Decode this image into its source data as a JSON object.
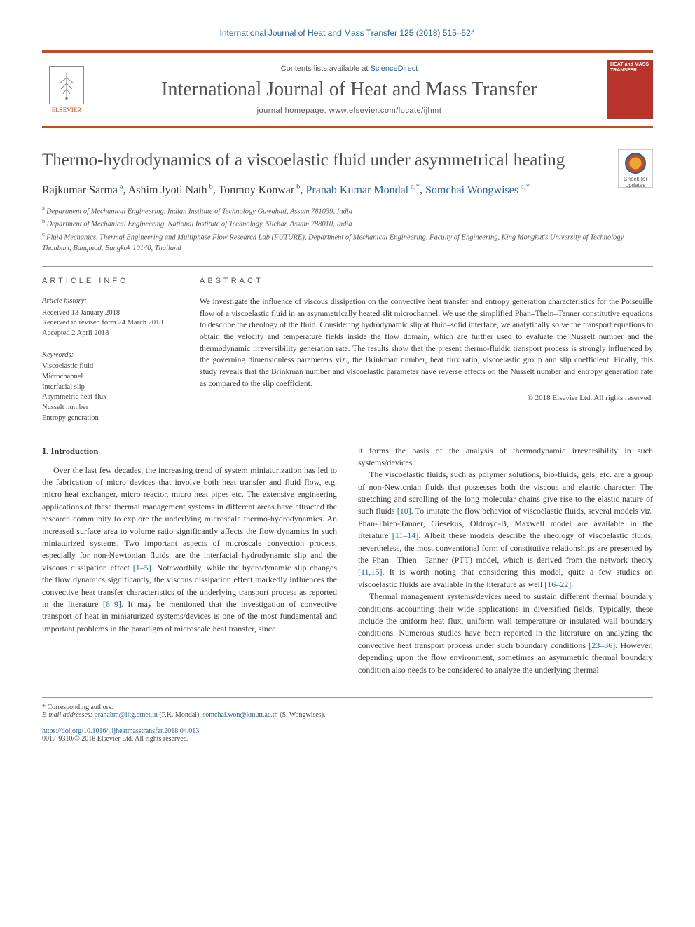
{
  "journal_ref": "International Journal of Heat and Mass Transfer 125 (2018) 515–524",
  "header": {
    "contents_prefix": "Contents lists available at ",
    "contents_link": "ScienceDirect",
    "journal_title": "International Journal of Heat and Mass Transfer",
    "homepage_prefix": "journal homepage: ",
    "homepage_url": "www.elsevier.com/locate/ijhmt",
    "publisher_label": "ELSEVIER",
    "cover_title": "HEAT and MASS TRANSFER"
  },
  "check_updates": "Check for updates",
  "title": "Thermo-hydrodynamics of a viscoelastic fluid under asymmetrical heating",
  "authors_html": "Rajkumar Sarma|a|, Ashim Jyoti Nath|b|, Tonmoy Konwar|b|, Pranab Kumar Mondal|a,*|, Somchai Wongwises|c,*",
  "authors": [
    {
      "name": "Rajkumar Sarma",
      "sup": "a"
    },
    {
      "name": "Ashim Jyoti Nath",
      "sup": "b"
    },
    {
      "name": "Tonmoy Konwar",
      "sup": "b"
    },
    {
      "name": "Pranab Kumar Mondal",
      "sup": "a,*",
      "link": true
    },
    {
      "name": "Somchai Wongwises",
      "sup": "c,*",
      "link": true
    }
  ],
  "affiliations": [
    {
      "sup": "a",
      "text": "Department of Mechanical Engineering, Indian Institute of Technology Guwahati, Assam 781039, India"
    },
    {
      "sup": "b",
      "text": "Department of Mechanical Engineering, National Institute of Technology, Silchar, Assam 788010, India"
    },
    {
      "sup": "c",
      "text": "Fluid Mechanics, Thermal Engineering and Multiphase Flow Research Lab (FUTURE), Department of Mechanical Engineering, Faculty of Engineering, King Mongkut's University of Technology Thonburi, Bangmod, Bangkok 10140, Thailand"
    }
  ],
  "info": {
    "label": "ARTICLE INFO",
    "history_head": "Article history:",
    "history": [
      "Received 13 January 2018",
      "Received in revised form 24 March 2018",
      "Accepted 2 April 2018"
    ],
    "keywords_head": "Keywords:",
    "keywords": [
      "Viscoelastic fluid",
      "Microchannel",
      "Interfacial slip",
      "Asymmetric heat-flux",
      "Nusselt number",
      "Entropy generation"
    ]
  },
  "abstract": {
    "label": "ABSTRACT",
    "text": "We investigate the influence of viscous dissipation on the convective heat transfer and entropy generation characteristics for the Poiseuille flow of a viscoelastic fluid in an asymmetrically heated slit microchannel. We use the simplified Phan–Thein–Tanner constitutive equations to describe the rheology of the fluid. Considering hydrodynamic slip at fluid–solid interface, we analytically solve the transport equations to obtain the velocity and temperature fields inside the flow domain, which are further used to evaluate the Nusselt number and the thermodynamic irreversibility generation rate. The results show that the present thermo-fluidic transport process is strongly influenced by the governing dimensionless parameters viz., the Brinkman number, heat flux ratio, viscoelastic group and slip coefficient. Finally, this study reveals that the Brinkman number and viscoelastic parameter have reverse effects on the Nusselt number and entropy generation rate as compared to the slip coefficient.",
    "copyright": "© 2018 Elsevier Ltd. All rights reserved."
  },
  "body": {
    "section_head": "1. Introduction",
    "col1_p1": "Over the last few decades, the increasing trend of system miniaturization has led to the fabrication of micro devices that involve both heat transfer and fluid flow, e.g. micro heat exchanger, micro reactor, micro heat pipes etc. The extensive engineering applications of these thermal management systems in different areas have attracted the research community to explore the underlying microscale thermo-hydrodynamics. An increased surface area to volume ratio significantly affects the flow dynamics in such miniaturized systems. Two important aspects of microscale convection process, especially for non-Newtonian fluids, are the interfacial hydrodynamic slip and the viscous dissipation effect ",
    "ref_1_5": "[1–5]",
    "col1_p1b": ". Noteworthily, while the hydrodynamic slip changes the flow dynamics significantly, the viscous dissipation effect markedly influences the convective heat transfer characteristics of the underlying transport process as reported in the literature ",
    "ref_6_9": "[6–9]",
    "col1_p1c": ". It may be mentioned that the investigation of convective transport of heat in miniaturized systems/devices is one of the most fundamental and important problems in the paradigm of microscale heat transfer, since",
    "col2_p1": "it forms the basis of the analysis of thermodynamic irreversibility in such systems/devices.",
    "col2_p2a": "The viscoelastic fluids, such as polymer solutions, bio-fluids, gels, etc. are a group of non-Newtonian fluids that possesses both the viscous and elastic character. The stretching and scrolling of the long molecular chains give rise to the elastic nature of such fluids ",
    "ref_10": "[10]",
    "col2_p2b": ". To imitate the flow behavior of viscoelastic fluids, several models viz. Phan-Thien-Tanner, Giesekus, Oldroyd-B, Maxwell model are available in the literature ",
    "ref_11_14": "[11–14]",
    "col2_p2c": ". Albeit these models describe the rheology of viscoelastic fluids, nevertheless, the most conventional form of constitutive relationships are presented by the Phan –Thien –Tanner (PTT) model, which is derived from the network theory ",
    "ref_11_15": "[11,15]",
    "col2_p2d": ". It is worth noting that considering this model, quite a few studies on viscoelastic fluids are available in the literature as well ",
    "ref_16_22": "[16–22]",
    "col2_p2e": ".",
    "col2_p3a": "Thermal management systems/devices need to sustain different thermal boundary conditions accounting their wide applications in diversified fields. Typically, these include the uniform heat flux, uniform wall temperature or insulated wall boundary conditions. Numerous studies have been reported in the literature on analyzing the convective heat transport process under such boundary conditions ",
    "ref_23_36": "[23–36]",
    "col2_p3b": ". However, depending upon the flow environment, sometimes an asymmetric thermal boundary condition also needs to be considered to analyze the underlying thermal"
  },
  "footnotes": {
    "corr": "* Corresponding authors.",
    "email_label": "E-mail addresses: ",
    "email1": "pranabm@iitg.ernet.in",
    "email1_who": " (P.K. Mondal), ",
    "email2": "somchai.won@kmutt.ac.th",
    "email2_who": " (S. Wongwises)."
  },
  "doi": {
    "url": "https://doi.org/10.1016/j.ijheatmasstransfer.2018.04.013",
    "issn": "0017-9310/© 2018 Elsevier Ltd. All rights reserved."
  },
  "colors": {
    "accent": "#c94a1a",
    "link": "#2264a8",
    "text": "#3a3a3a",
    "cover_bg": "#b8342a"
  }
}
